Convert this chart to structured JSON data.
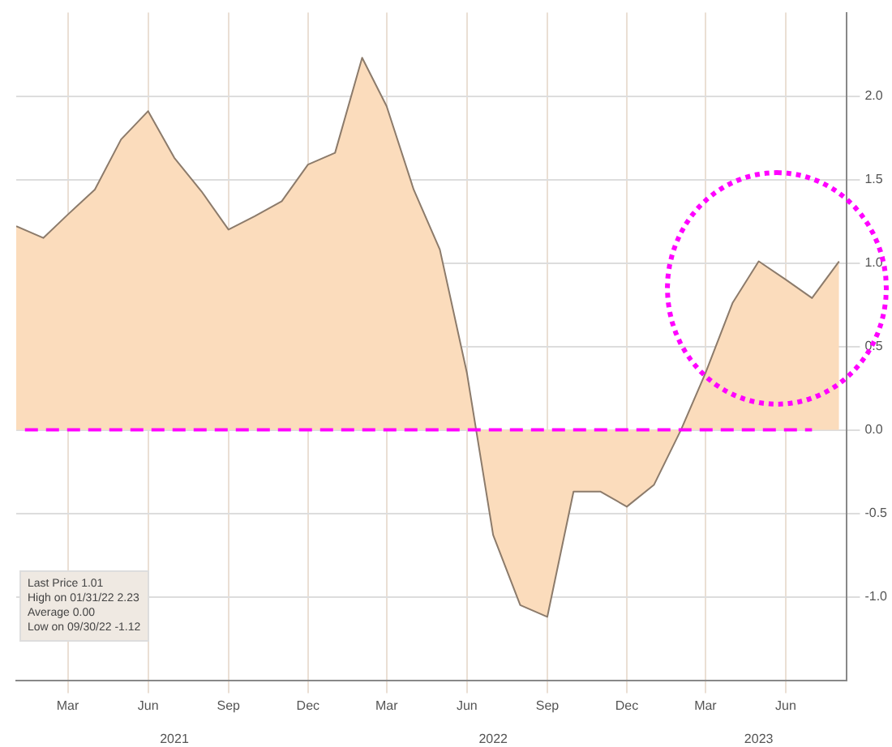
{
  "chart_data": {
    "type": "area",
    "x": [
      "2021-01",
      "2021-02",
      "2021-03",
      "2021-04",
      "2021-05",
      "2021-06",
      "2021-07",
      "2021-08",
      "2021-09",
      "2021-10",
      "2021-11",
      "2021-12",
      "2022-01",
      "2022-02",
      "2022-03",
      "2022-04",
      "2022-05",
      "2022-06",
      "2022-07",
      "2022-08",
      "2022-09",
      "2022-10",
      "2022-11",
      "2022-12",
      "2023-01",
      "2023-02",
      "2023-03",
      "2023-04",
      "2023-05",
      "2023-06",
      "2023-07",
      "2023-08"
    ],
    "series": [
      {
        "color": "#fbdcbc",
        "values": [
          1.22,
          1.15,
          1.29,
          1.44,
          1.74,
          1.91,
          1.63,
          1.43,
          1.2,
          1.28,
          1.37,
          1.59,
          1.66,
          2.23,
          1.94,
          1.44,
          1.08,
          0.34,
          -0.63,
          -1.05,
          -1.12,
          -0.37,
          -0.37,
          -0.46,
          -0.33,
          0.0,
          0.34,
          0.76,
          1.01,
          0.9,
          0.79,
          1.01
        ]
      }
    ],
    "xlim": [
      "2021-01-01",
      "2023-08-10"
    ],
    "xticks": [
      {
        "value": "2021-03-01",
        "label": "Mar"
      },
      {
        "value": "2021-06-01",
        "label": "Jun"
      },
      {
        "value": "2021-09-01",
        "label": "Sep"
      },
      {
        "value": "2021-12-01",
        "label": "Dec"
      },
      {
        "value": "2022-03-01",
        "label": "Mar"
      },
      {
        "value": "2022-06-01",
        "label": "Jun"
      },
      {
        "value": "2022-09-01",
        "label": "Sep"
      },
      {
        "value": "2022-12-01",
        "label": "Dec"
      },
      {
        "value": "2023-03-01",
        "label": "Mar"
      },
      {
        "value": "2023-06-01",
        "label": "Jun"
      }
    ],
    "x2lim": [
      "2021-01-01",
      "2023-08-10"
    ],
    "x2ticks": [
      {
        "value": "2021-07-01",
        "label": "2021"
      },
      {
        "value": "2022-07-01",
        "label": "2022"
      },
      {
        "value": "2023-05-01",
        "label": "2023"
      }
    ],
    "ylim": [
      -1.5,
      2.5
    ],
    "yticks": [
      {
        "value": -1,
        "label": "-1.0"
      },
      {
        "value": -0.5,
        "label": "-0.5"
      },
      {
        "value": 0,
        "label": "0.0"
      },
      {
        "value": 0.5,
        "label": "0.5"
      },
      {
        "value": 1,
        "label": "1.0"
      },
      {
        "value": 1.5,
        "label": "1.5"
      },
      {
        "value": 2,
        "label": "2.0"
      }
    ],
    "grid": true,
    "ref_lines": [
      {
        "axis": "y",
        "value": 0,
        "color": "#ff00ff",
        "line_style": "dashed"
      }
    ],
    "annotations": [
      "Last Price  1.01",
      "High on 01/31/22  2.23",
      "Average  0.00",
      "Low on 09/30/22  -1.12"
    ]
  }
}
